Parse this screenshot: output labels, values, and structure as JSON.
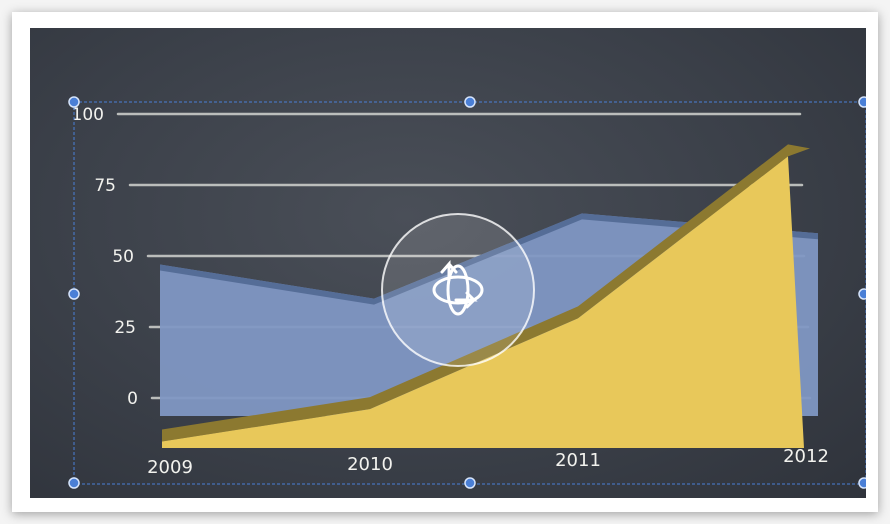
{
  "chart_data": {
    "type": "area",
    "style": "3d",
    "categories": [
      "2009",
      "2010",
      "2011",
      "2012"
    ],
    "series": [
      {
        "values": [
          47,
          35,
          65,
          58
        ],
        "color": "#7f97c3"
      },
      {
        "values": [
          2,
          12,
          40,
          90
        ],
        "color": "#e8c85a"
      }
    ],
    "ylim": [
      0,
      100
    ],
    "yticks": [
      "0",
      "25",
      "50",
      "75",
      "100"
    ],
    "grid": true
  },
  "icons": {
    "rotate_handle": "rotate-3d-icon"
  },
  "colors": {
    "board": "#3b4049",
    "selection": "#4a7fd6",
    "chalk": "#f2f2ee"
  }
}
